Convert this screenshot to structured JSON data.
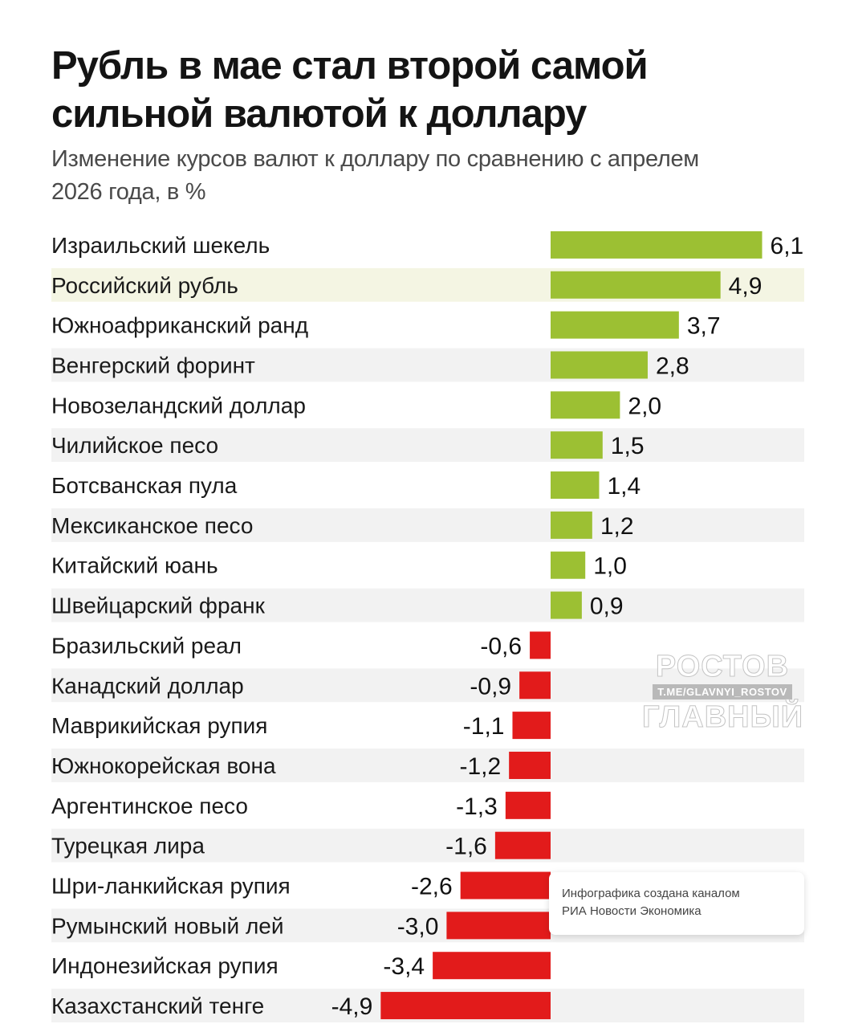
{
  "header": {
    "title_line1": "Рубль в мае стал второй самой",
    "title_line2": "сильной валютой к доллару",
    "subtitle_line1": "Изменение курсов валют к доллару по сравнению с апрелем",
    "subtitle_line2": "2026 года, в %"
  },
  "colors": {
    "positive": "#9cc033",
    "negative": "#e21b1b",
    "stripe": "#f2f2f2",
    "highlight": "#f4f5e3"
  },
  "chart_data": {
    "type": "bar",
    "orientation": "horizontal",
    "title": "Рубль в мае стал второй самой сильной валютой к доллару",
    "subtitle": "Изменение курсов валют к доллару по сравнению с апрелем 2026 года, в %",
    "highlight_category": "Российский рубль",
    "categories": [
      "Израильский шекель",
      "Российский рубль",
      "Южноафриканский ранд",
      "Венгерский форинт",
      "Новозеландский доллар",
      "Чилийское песо",
      "Ботсванская пула",
      "Мексиканское песо",
      "Китайский юань",
      "Швейцарский франк",
      "Бразильский реал",
      "Канадский доллар",
      "Маврикийская рупия",
      "Южнокорейская вона",
      "Аргентинское песо",
      "Турецкая лира",
      "Шри-ланкийская рупия",
      "Румынский новый лей",
      "Индонезийская рупия",
      "Казахстанский тенге"
    ],
    "values": [
      6.1,
      4.9,
      3.7,
      2.8,
      2.0,
      1.5,
      1.4,
      1.2,
      1.0,
      0.9,
      -0.6,
      -0.9,
      -1.1,
      -1.2,
      -1.3,
      -1.6,
      -2.6,
      -3.0,
      -3.4,
      -4.9
    ],
    "value_labels": [
      "6,1",
      "4,9",
      "3,7",
      "2,8",
      "2,0",
      "1,5",
      "1,4",
      "1,2",
      "1,0",
      "0,9",
      "-0,6",
      "-0,9",
      "-1,1",
      "-1,2",
      "-1,3",
      "-1,6",
      "-2,6",
      "-3,0",
      "-3,4",
      "-4,9"
    ],
    "xlim": [
      -4.9,
      6.1
    ],
    "grid": false,
    "legend": "none"
  },
  "watermark": {
    "line1": "РОСТОВ",
    "line2": "T.ME/GLAVNYI_ROSTOV",
    "line3": "ГЛАВНЫЙ"
  },
  "credit": {
    "line1": "Инфографика создана каналом",
    "line2": "РИА Новости Экономика"
  }
}
